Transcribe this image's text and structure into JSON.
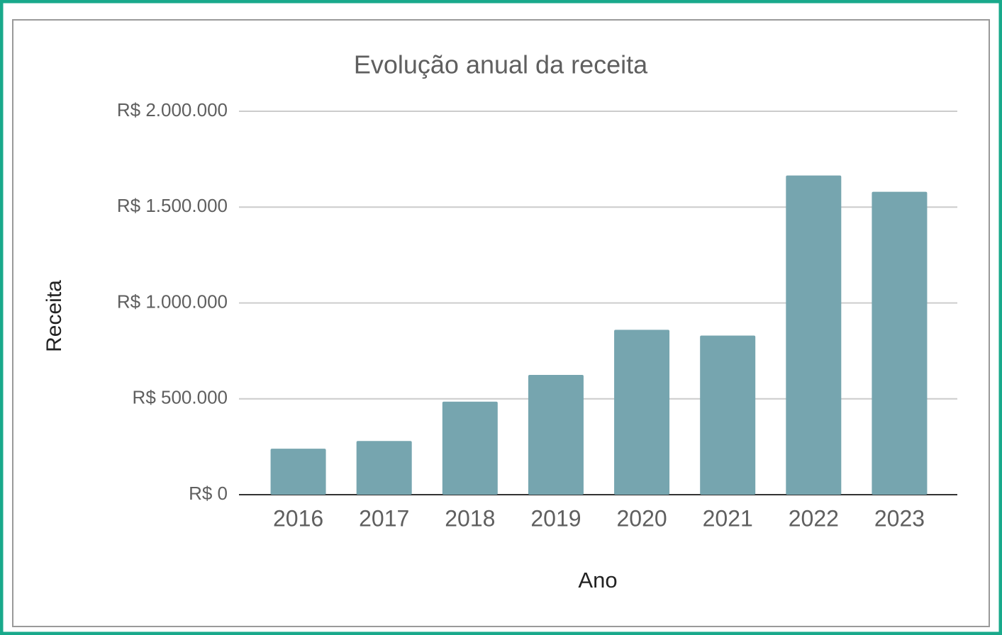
{
  "chart_data": {
    "type": "bar",
    "title": "Evolução anual da receita",
    "x_label": "Ano",
    "y_label": "Receita",
    "categories": [
      "2016",
      "2017",
      "2018",
      "2019",
      "2020",
      "2021",
      "2022",
      "2023"
    ],
    "values": [
      240000,
      280000,
      485000,
      625000,
      860000,
      830000,
      1665000,
      1580000
    ],
    "color": "#76a5af",
    "ylim": [
      0,
      2000000
    ],
    "yticks": [
      {
        "value": 0,
        "label": "R$ 0"
      },
      {
        "value": 500000,
        "label": "R$ 500.000"
      },
      {
        "value": 1000000,
        "label": "R$ 1.000.000"
      },
      {
        "value": 1500000,
        "label": "R$ 1.500.000"
      },
      {
        "value": 2000000,
        "label": "R$ 2.000.000"
      }
    ],
    "grid": true
  }
}
